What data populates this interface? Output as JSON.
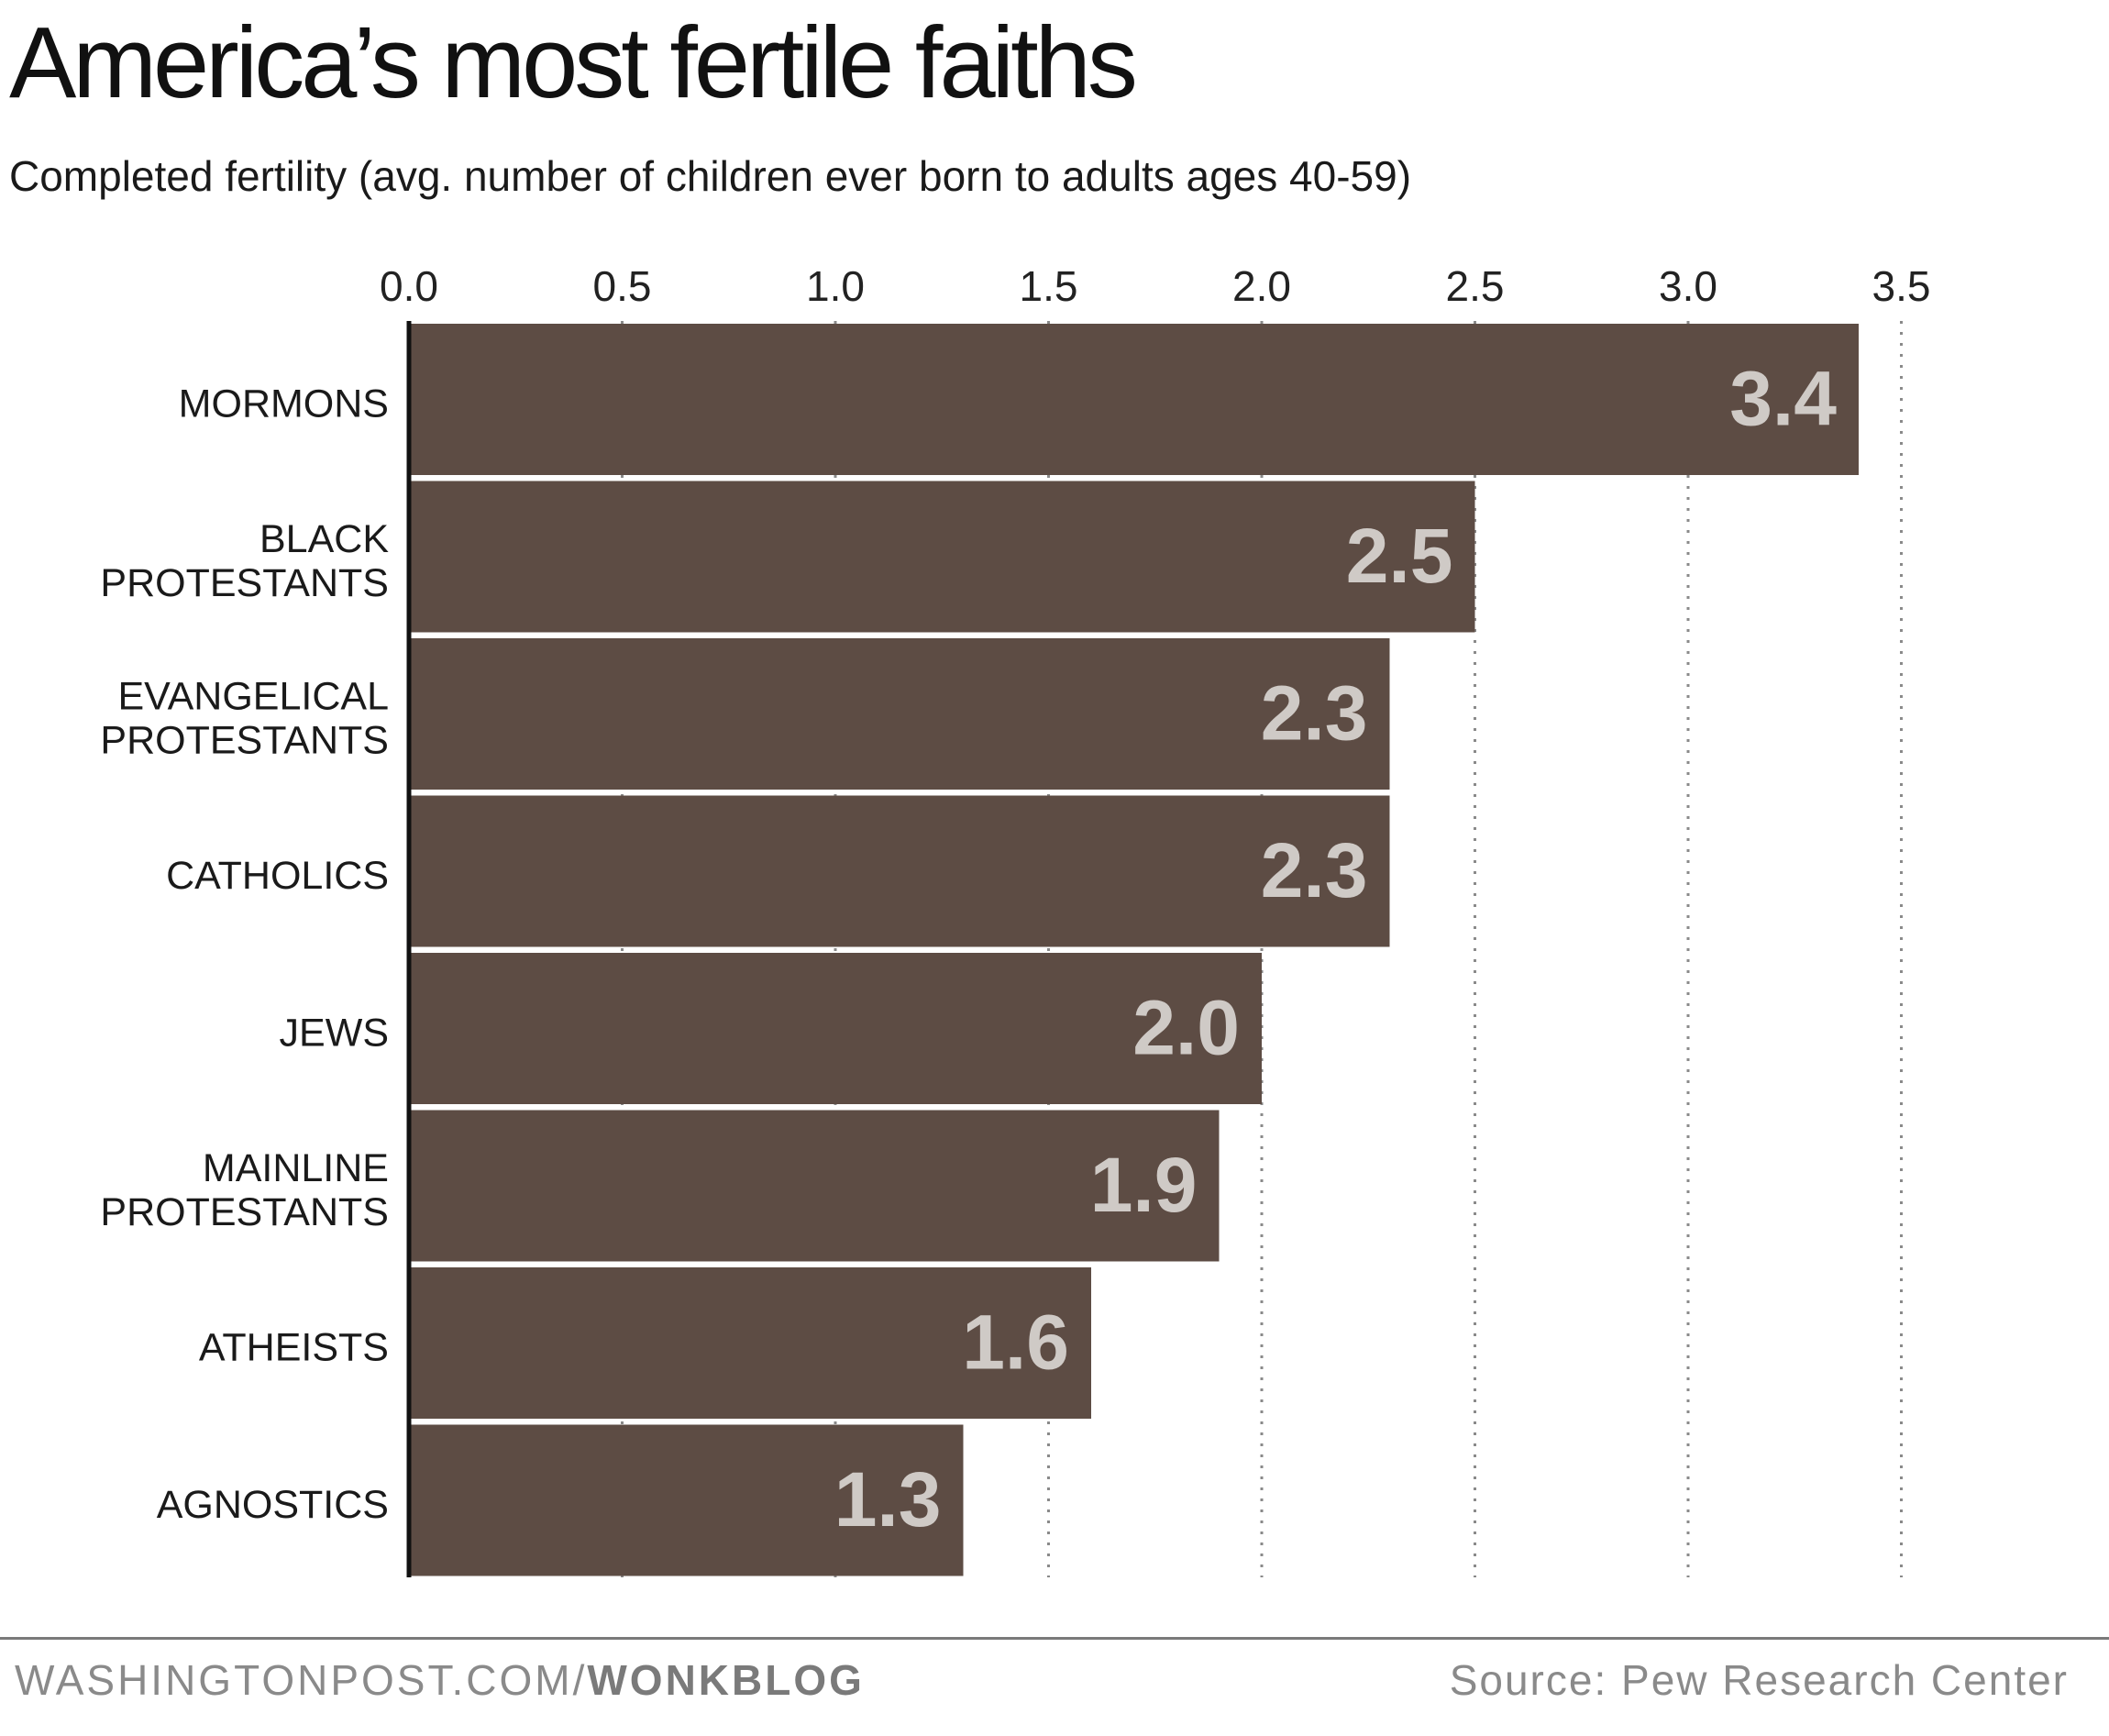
{
  "header": {
    "title": "America’s most fertile faiths",
    "subtitle": "Completed fertility (avg. number of children ever born to adults ages 40-59)"
  },
  "footer": {
    "site": "WASHINGTONPOST.COM/",
    "section": "WONKBLOG",
    "source": "Source: Pew Research Center"
  },
  "colors": {
    "bar": "#5d4c44",
    "value_label": "#cfcac6",
    "gridline": "#8a8a8a",
    "axis": "#111111"
  },
  "chart_data": {
    "type": "bar",
    "orientation": "horizontal",
    "title": "America’s most fertile faiths",
    "subtitle": "Completed fertility (avg. number of children ever born to adults ages 40-59)",
    "categories": [
      [
        "MORMONS"
      ],
      [
        "BLACK",
        "PROTESTANTS"
      ],
      [
        "EVANGELICAL",
        "PROTESTANTS"
      ],
      [
        "CATHOLICS"
      ],
      [
        "JEWS"
      ],
      [
        "MAINLINE",
        "PROTESTANTS"
      ],
      [
        "ATHEISTS"
      ],
      [
        "AGNOSTICS"
      ]
    ],
    "values": [
      3.4,
      2.5,
      2.3,
      2.3,
      2.0,
      1.9,
      1.6,
      1.3
    ],
    "value_labels": [
      "3.4",
      "2.5",
      "2.3",
      "2.3",
      "2.0",
      "1.9",
      "1.6",
      "1.3"
    ],
    "xlim": [
      0,
      3.5
    ],
    "xticks": [
      0,
      0.5,
      1.0,
      1.5,
      2.0,
      2.5,
      3.0,
      3.5
    ],
    "xtick_labels": [
      "0.0",
      "0.5",
      "1.0",
      "1.5",
      "2.0",
      "2.5",
      "3.0",
      "3.5"
    ],
    "xaxis_position": "top",
    "grid": "vertical dotted",
    "xlabel": "",
    "ylabel": ""
  }
}
